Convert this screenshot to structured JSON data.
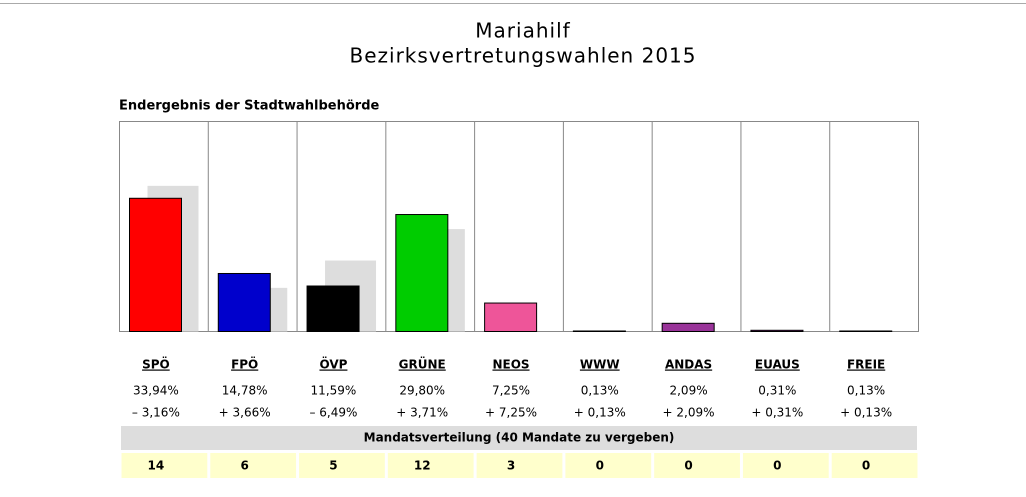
{
  "chart_data": {
    "type": "bar",
    "title": "Mariahilf",
    "subtitle": "Bezirksvertretungswahlen 2015",
    "heading": "Endergebnis der Stadtwahlbehörde",
    "categories": [
      "SPÖ",
      "FPÖ",
      "ÖVP",
      "GRÜNE",
      "NEOS",
      "WWW",
      "ANDAS",
      "EUAUS",
      "FREIE"
    ],
    "series": [
      {
        "colors": [
          "#ff0000",
          "#0000cc",
          "#000000",
          "#00cc00",
          "#ee5599",
          "#ffffff",
          "#993399",
          "#993399",
          "#771177"
        ],
        "values": [
          33.94,
          14.78,
          11.59,
          29.8,
          7.25,
          0.13,
          2.09,
          0.31,
          0.13
        ],
        "value_labels": [
          "33,94%",
          "14,78%",
          "11,59%",
          "29,80%",
          "7,25%",
          "0,13%",
          "2,09%",
          "0,31%",
          "0,13%"
        ]
      },
      {
        "color": "#dddddd",
        "values": [
          37.1,
          11.12,
          18.08,
          26.09,
          0,
          0,
          0,
          0,
          0
        ]
      }
    ],
    "changes": {
      "values": [
        -3.16,
        3.66,
        -6.49,
        3.71,
        7.25,
        0.13,
        2.09,
        0.31,
        0.13
      ],
      "value_labels": [
        "– 3,16%",
        "+ 3,66%",
        "– 6,49%",
        "+ 3,71%",
        "+ 7,25%",
        "+ 0,13%",
        "+ 2,09%",
        "+ 0,31%",
        "+ 0,13%"
      ]
    },
    "mandates_title": "Mandatsverteilung (40 Mandate zu vergeben)",
    "mandates": [
      14,
      6,
      5,
      12,
      3,
      0,
      0,
      0,
      0
    ],
    "ylim": [
      0,
      53.5
    ]
  }
}
